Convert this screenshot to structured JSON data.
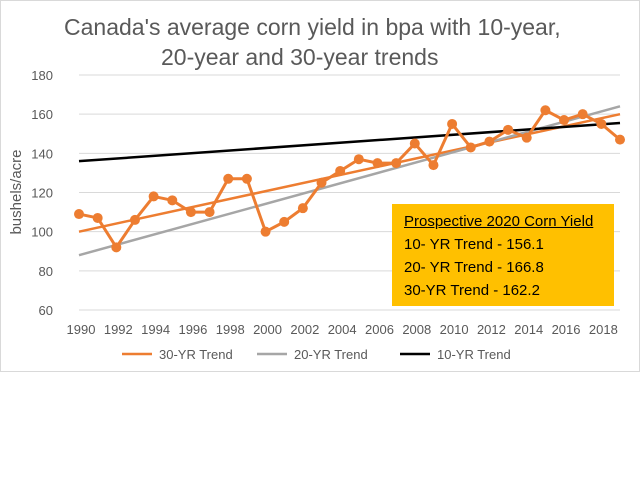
{
  "chart_data": {
    "type": "line",
    "title_lines": [
      "Canada's average corn yield in bpa with 10-year,",
      "20-year and 30-year trends"
    ],
    "ylabel": "bushels/acre",
    "xlabel": "",
    "ylim": [
      60,
      180
    ],
    "yticks": [
      60,
      80,
      100,
      120,
      140,
      160,
      180
    ],
    "xlim": [
      1990,
      2019
    ],
    "xtick_labels": [
      "1990",
      "1992",
      "1994",
      "1996",
      "1998",
      "2000",
      "2002",
      "2004",
      "2006",
      "2008",
      "2010",
      "2012",
      "2014",
      "2016",
      "2018"
    ],
    "grid": true,
    "legend_placement": "bottom",
    "series": [
      {
        "color": "#ed7d31",
        "marker": "circle",
        "x": [
          1990,
          1991,
          1992,
          1993,
          1994,
          1995,
          1996,
          1997,
          1998,
          1999,
          2000,
          2001,
          2002,
          2003,
          2004,
          2005,
          2006,
          2007,
          2008,
          2009,
          2010,
          2011,
          2012,
          2013,
          2014,
          2015,
          2016,
          2017,
          2018,
          2019
        ],
        "y": [
          109,
          107,
          92,
          106,
          118,
          116,
          110,
          110,
          127,
          127,
          100,
          105,
          112,
          125,
          131,
          137,
          135,
          135,
          145,
          134,
          155,
          143,
          146,
          152,
          148,
          162,
          157,
          160,
          155,
          147
        ]
      },
      {
        "name": "30-YR Trend",
        "color": "#ed7d31",
        "x": [
          1990,
          2019
        ],
        "y": [
          100,
          160
        ]
      },
      {
        "name": "20-YR Trend",
        "color": "#a6a6a6",
        "x": [
          1990,
          2019
        ],
        "y": [
          88,
          164
        ]
      },
      {
        "name": "10-YR Trend",
        "color": "#000000",
        "x": [
          1990,
          2019
        ],
        "y": [
          136,
          155.5
        ]
      }
    ],
    "annotation": {
      "heading": "Prospective 2020 Corn Yield",
      "lines": [
        "10- YR Trend - 156.1",
        "20- YR Trend - 166.8",
        "30-YR Trend - 162.2"
      ],
      "background": "#ffc000"
    }
  }
}
